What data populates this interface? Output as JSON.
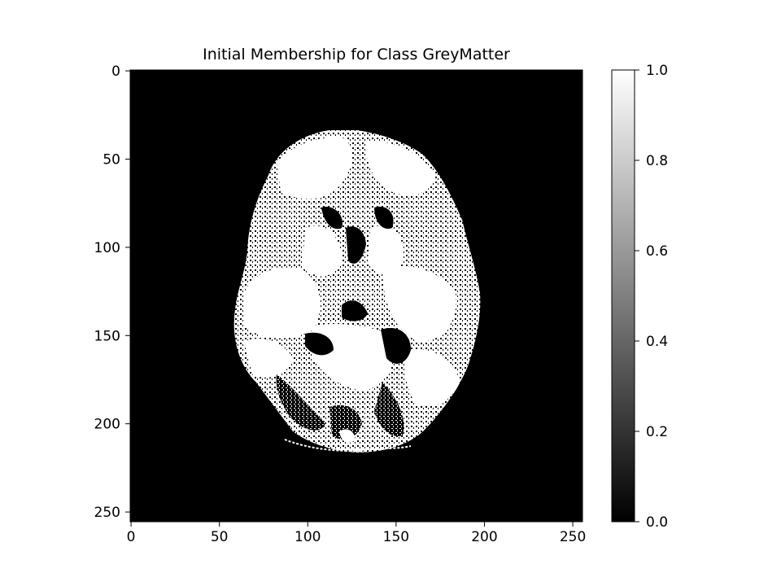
{
  "chart_data": {
    "type": "heatmap",
    "title": "Initial Membership for Class GreyMatter",
    "xlabel": "",
    "ylabel": "",
    "xlim": [
      0,
      255
    ],
    "ylim": [
      255,
      0
    ],
    "x_ticks": [
      0,
      50,
      100,
      150,
      200,
      250
    ],
    "y_ticks": [
      0,
      50,
      100,
      150,
      200,
      250
    ],
    "colormap": "grey",
    "colorbar": {
      "range": [
        0.0,
        1.0
      ],
      "ticks": [
        "0.0",
        "0.2",
        "0.4",
        "0.6",
        "0.8",
        "1.0"
      ]
    },
    "image_description_hidden": true,
    "grid": false
  }
}
